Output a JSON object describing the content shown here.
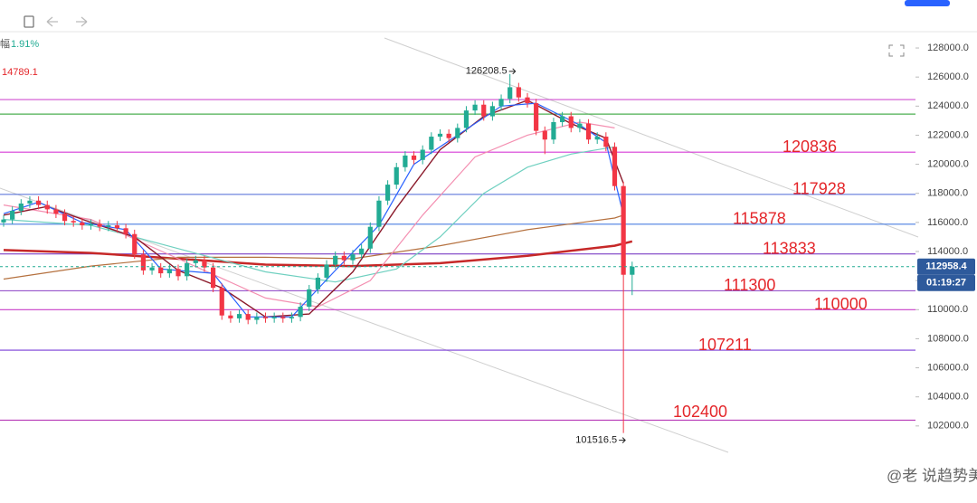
{
  "header": {
    "change_prefix": "幅",
    "change": "1.91%",
    "price": "14789.1"
  },
  "watermark": "@老  说趋势美猴",
  "chart_data": {
    "type": "candlestick",
    "open": [
      116000,
      116200,
      116800,
      117300,
      117500,
      117200,
      116900,
      116600,
      116100,
      116000,
      115800,
      115900,
      115700,
      115800,
      115600,
      115200,
      113800,
      112700,
      112900,
      112500,
      112800,
      112300,
      113200,
      113400,
      112900,
      111500,
      109600,
      109400,
      109700,
      109300,
      109500,
      109400,
      109500,
      109400,
      109500,
      110200,
      111400,
      112200,
      113100,
      113700,
      113400,
      113800,
      114200,
      115700,
      117500,
      118600,
      119800,
      120600,
      120300,
      121000,
      121900,
      122100,
      121800,
      122500,
      123700,
      124100,
      123300,
      124000,
      124500,
      125300,
      124600,
      124200,
      122300,
      121700,
      122900,
      123300,
      122500,
      122800,
      121700,
      121900,
      121200,
      118500,
      112400
    ],
    "high": [
      116500,
      117100,
      117600,
      117800,
      117800,
      117500,
      117200,
      116900,
      116400,
      116300,
      116200,
      116200,
      116100,
      116100,
      115900,
      115500,
      114100,
      113200,
      113200,
      113100,
      113100,
      113500,
      113700,
      113700,
      113200,
      111800,
      109900,
      110000,
      110000,
      109800,
      109800,
      109800,
      109800,
      109800,
      110500,
      111700,
      112500,
      113400,
      114000,
      114000,
      114100,
      114500,
      116000,
      117800,
      118900,
      120100,
      120900,
      120900,
      121300,
      122200,
      122400,
      122400,
      122800,
      124000,
      124400,
      124400,
      124300,
      124800,
      126208.5,
      125600,
      124900,
      124500,
      122600,
      123200,
      123600,
      123600,
      123100,
      123100,
      122200,
      122200,
      121500,
      118800,
      113300
    ],
    "low": [
      115700,
      115900,
      116500,
      117000,
      116900,
      116600,
      116300,
      115800,
      115700,
      115500,
      115500,
      115400,
      115400,
      115300,
      114900,
      113500,
      112400,
      112400,
      112200,
      112200,
      112000,
      112000,
      112900,
      112600,
      111200,
      109300,
      109100,
      109100,
      109000,
      109000,
      109100,
      109100,
      109100,
      109100,
      109200,
      109900,
      111100,
      111900,
      112800,
      113100,
      113100,
      113500,
      113900,
      115400,
      117200,
      118300,
      119500,
      120000,
      120000,
      120700,
      121600,
      121500,
      121500,
      122200,
      123400,
      123000,
      123000,
      123700,
      124200,
      124300,
      123900,
      122000,
      120700,
      121400,
      122600,
      122200,
      122200,
      121400,
      121400,
      120900,
      118200,
      101516.5,
      111000
    ],
    "close": [
      116200,
      116800,
      117300,
      117500,
      117200,
      116900,
      116600,
      116100,
      116000,
      115800,
      115900,
      115700,
      115800,
      115600,
      115200,
      113800,
      112700,
      112900,
      112500,
      112800,
      112300,
      113200,
      113400,
      112900,
      111500,
      109600,
      109400,
      109700,
      109300,
      109500,
      109400,
      109500,
      109400,
      109500,
      110200,
      111400,
      112200,
      113100,
      113700,
      113400,
      113800,
      114200,
      115700,
      117500,
      118600,
      119800,
      120600,
      120300,
      121000,
      121900,
      122100,
      121800,
      122500,
      123700,
      124100,
      123300,
      124000,
      124500,
      125300,
      124600,
      124200,
      122300,
      121700,
      122900,
      123300,
      122500,
      122800,
      121700,
      121900,
      121200,
      118500,
      112400,
      112958.4
    ],
    "up_color": "#22ab94",
    "down_color": "#f23645",
    "ylim": [
      96700,
      131300
    ],
    "yticks": [
      {
        "value": 102000,
        "label": "102000.0"
      },
      {
        "value": 104000,
        "label": "104000.0"
      },
      {
        "value": 106000,
        "label": "106000.0"
      },
      {
        "value": 108000,
        "label": "108000.0"
      },
      {
        "value": 110000,
        "label": "110000.0"
      },
      {
        "value": 112000,
        "label": "112000.0"
      },
      {
        "value": 114000,
        "label": "114000.0"
      },
      {
        "value": 116000,
        "label": "116000.0"
      },
      {
        "value": 118000,
        "label": "118000.0"
      },
      {
        "value": 120000,
        "label": "120000.0"
      },
      {
        "value": 122000,
        "label": "122000.0"
      },
      {
        "value": 124000,
        "label": "124000.0"
      },
      {
        "value": 126000,
        "label": "126000.0"
      },
      {
        "value": 128000,
        "label": "128000.0"
      }
    ],
    "levels": [
      {
        "value": 120836,
        "color": "#d63bd6"
      },
      {
        "value": 117928,
        "color": "#4a67d6"
      },
      {
        "value": 115878,
        "color": "#4a7fe0"
      },
      {
        "value": 113833,
        "color": "#7b3fc4"
      },
      {
        "value": 111300,
        "color": "#8a3fc4"
      },
      {
        "value": 110000,
        "color": "#c83ec8"
      },
      {
        "value": 107211,
        "color": "#7a3cd8"
      },
      {
        "value": 102400,
        "color": "#b83cb8"
      }
    ],
    "guide_lines": [
      {
        "value": 124450,
        "color": "#d050d0"
      },
      {
        "value": 123450,
        "color": "#4caf50"
      }
    ],
    "moving_averages": [
      {
        "color": "#c62828",
        "width": 2.5,
        "x": [
          0,
          10,
          20,
          30,
          40,
          50,
          60,
          70,
          72
        ],
        "values": [
          114100,
          113900,
          113500,
          113100,
          113000,
          113200,
          113700,
          114400,
          114700
        ]
      },
      {
        "color": "#b5713f",
        "width": 1.2,
        "x": [
          0,
          10,
          20,
          30,
          40,
          50,
          60,
          70,
          71
        ],
        "values": [
          112100,
          113000,
          113600,
          113600,
          113500,
          114400,
          115500,
          116300,
          116500
        ]
      },
      {
        "color": "#6fd0c0",
        "width": 1.2,
        "x": [
          0,
          10,
          20,
          30,
          38,
          45,
          50,
          55,
          60,
          65,
          70
        ],
        "values": [
          116200,
          115800,
          114200,
          112600,
          111900,
          112800,
          115000,
          118000,
          119800,
          120700,
          121200
        ]
      },
      {
        "color": "#f48fb1",
        "width": 1.2,
        "x": [
          0,
          10,
          20,
          30,
          36,
          42,
          48,
          54,
          60,
          66,
          70
        ],
        "values": [
          117200,
          116200,
          113500,
          110800,
          110200,
          112000,
          116500,
          120500,
          122000,
          122900,
          122500
        ]
      },
      {
        "color": "#8b1a2b",
        "width": 1.4,
        "x": [
          0,
          5,
          10,
          15,
          20,
          25,
          30,
          35,
          40,
          45,
          50,
          55,
          60,
          65,
          69,
          71
        ],
        "values": [
          116500,
          117100,
          116000,
          115000,
          112700,
          111500,
          109500,
          109700,
          112600,
          117000,
          121000,
          123300,
          124400,
          122800,
          121800,
          118700
        ]
      },
      {
        "color": "#2962ff",
        "width": 1.2,
        "x": [
          0,
          4,
          9,
          14,
          18,
          24,
          28,
          33,
          38,
          43,
          47,
          52,
          57,
          61,
          66,
          69,
          71
        ],
        "values": [
          116600,
          117400,
          116000,
          115500,
          112800,
          112500,
          109500,
          109500,
          112700,
          115800,
          120000,
          122000,
          124000,
          124200,
          122700,
          121500,
          116500
        ]
      }
    ],
    "countdown": "01:19:27"
  }
}
